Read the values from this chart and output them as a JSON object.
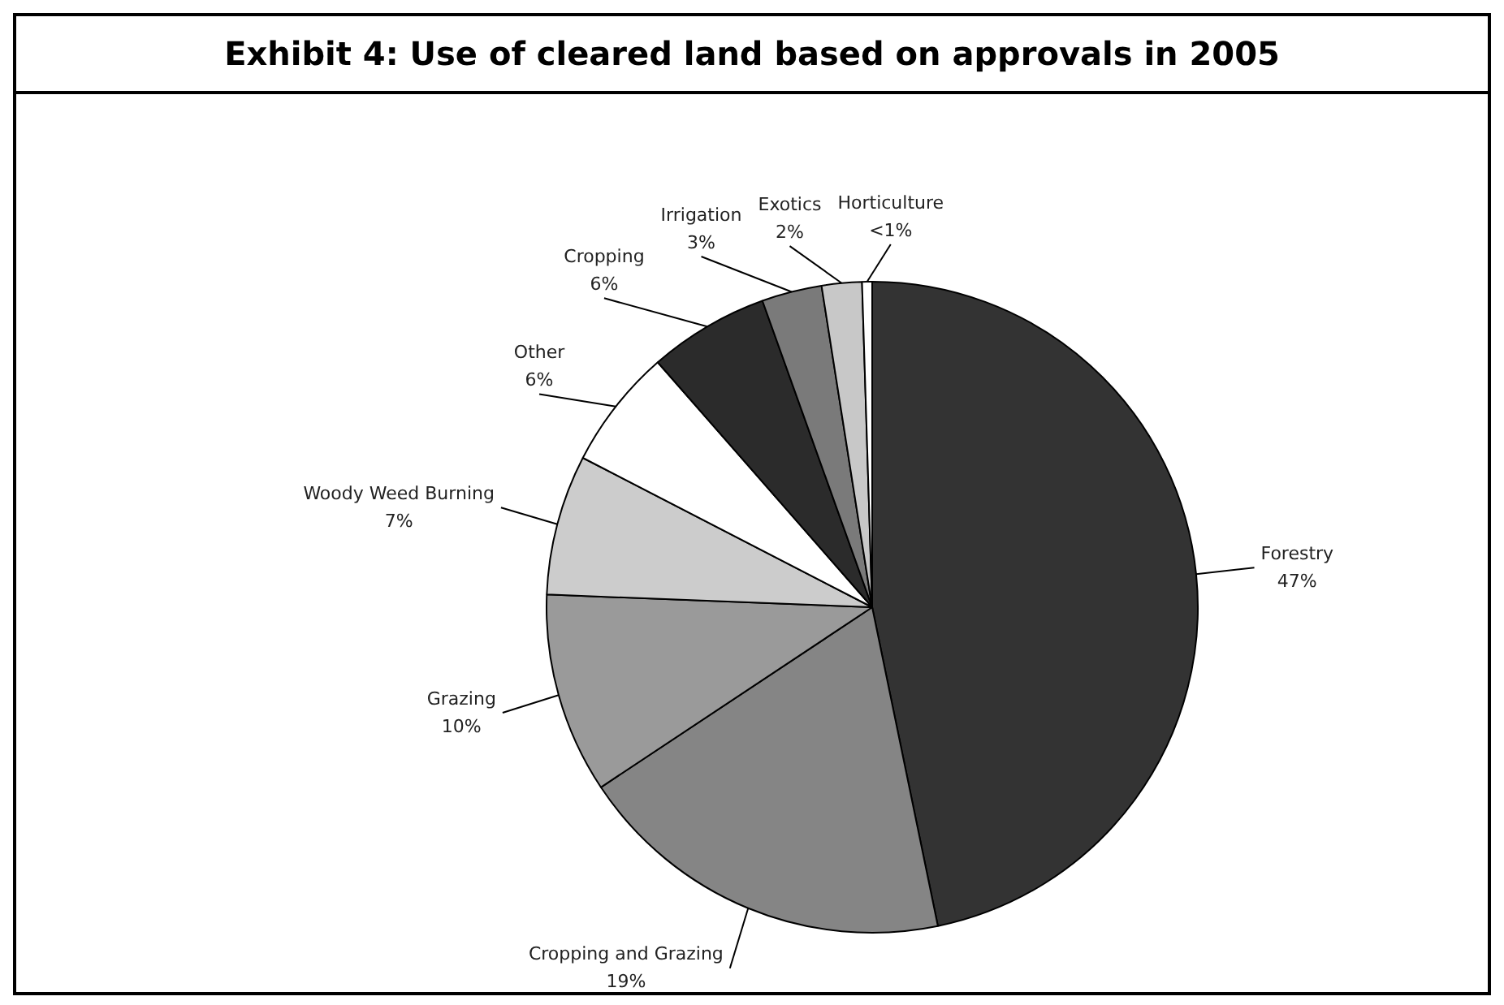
{
  "chart_data": {
    "type": "pie",
    "title": "Exhibit 4: Use of cleared land based on approvals in 2005",
    "categories": [
      "Forestry",
      "Cropping and Grazing",
      "Grazing",
      "Woody Weed Burning",
      "Other",
      "Cropping",
      "Irrigation",
      "Exotics",
      "Horticulture"
    ],
    "values": [
      47,
      19,
      10,
      7,
      6,
      6,
      3,
      2,
      0.5
    ],
    "value_labels": [
      "47%",
      "19%",
      "10%",
      "7%",
      "6%",
      "6%",
      "3%",
      "2%",
      "<1%"
    ],
    "colors": [
      "#333333",
      "#858585",
      "#9a9a9a",
      "#cccccc",
      "#ffffff",
      "#2b2b2b",
      "#7a7a7a",
      "#c8c8c8",
      "#ffffff"
    ],
    "legend": false
  }
}
